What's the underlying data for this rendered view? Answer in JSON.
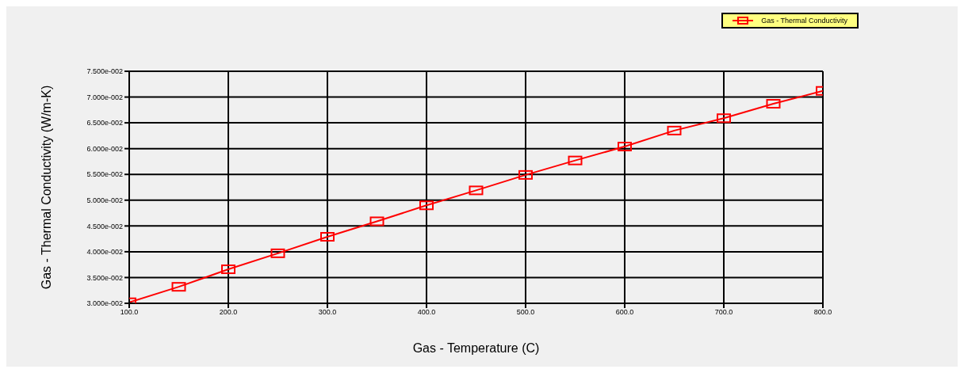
{
  "chart_data": {
    "type": "line",
    "xlabel": "Gas - Temperature (C)",
    "ylabel": "Gas - Thermal Conductivity (W/m-K)",
    "x": [
      100,
      150,
      200,
      250,
      300,
      350,
      400,
      450,
      500,
      550,
      600,
      650,
      700,
      750,
      800
    ],
    "series": [
      {
        "name": "Gas - Thermal Conductivity",
        "color": "#ff0000",
        "values": [
          0.0302,
          0.0332,
          0.0366,
          0.0397,
          0.0429,
          0.0459,
          0.049,
          0.0519,
          0.0549,
          0.0577,
          0.0604,
          0.0635,
          0.0659,
          0.0687,
          0.0712
        ]
      }
    ],
    "xlim": [
      100,
      800
    ],
    "xticks": [
      {
        "value": 100,
        "label": "100.0"
      },
      {
        "value": 200,
        "label": "200.0"
      },
      {
        "value": 300,
        "label": "300.0"
      },
      {
        "value": 400,
        "label": "400.0"
      },
      {
        "value": 500,
        "label": "500.0"
      },
      {
        "value": 600,
        "label": "600.0"
      },
      {
        "value": 700,
        "label": "700.0"
      },
      {
        "value": 800,
        "label": "800.0"
      }
    ],
    "ylim": [
      0.03,
      0.075
    ],
    "yticks": [
      {
        "value": 0.03,
        "label": "3.000e-002"
      },
      {
        "value": 0.035,
        "label": "3.500e-002"
      },
      {
        "value": 0.04,
        "label": "4.000e-002"
      },
      {
        "value": 0.045,
        "label": "4.500e-002"
      },
      {
        "value": 0.05,
        "label": "5.000e-002"
      },
      {
        "value": 0.055,
        "label": "5.500e-002"
      },
      {
        "value": 0.06,
        "label": "6.000e-002"
      },
      {
        "value": 0.065,
        "label": "6.500e-002"
      },
      {
        "value": 0.07,
        "label": "7.000e-002"
      },
      {
        "value": 0.075,
        "label": "7.500e-002"
      }
    ],
    "grid": true,
    "legend": "top right",
    "marker": "square",
    "line_style": "solid"
  }
}
